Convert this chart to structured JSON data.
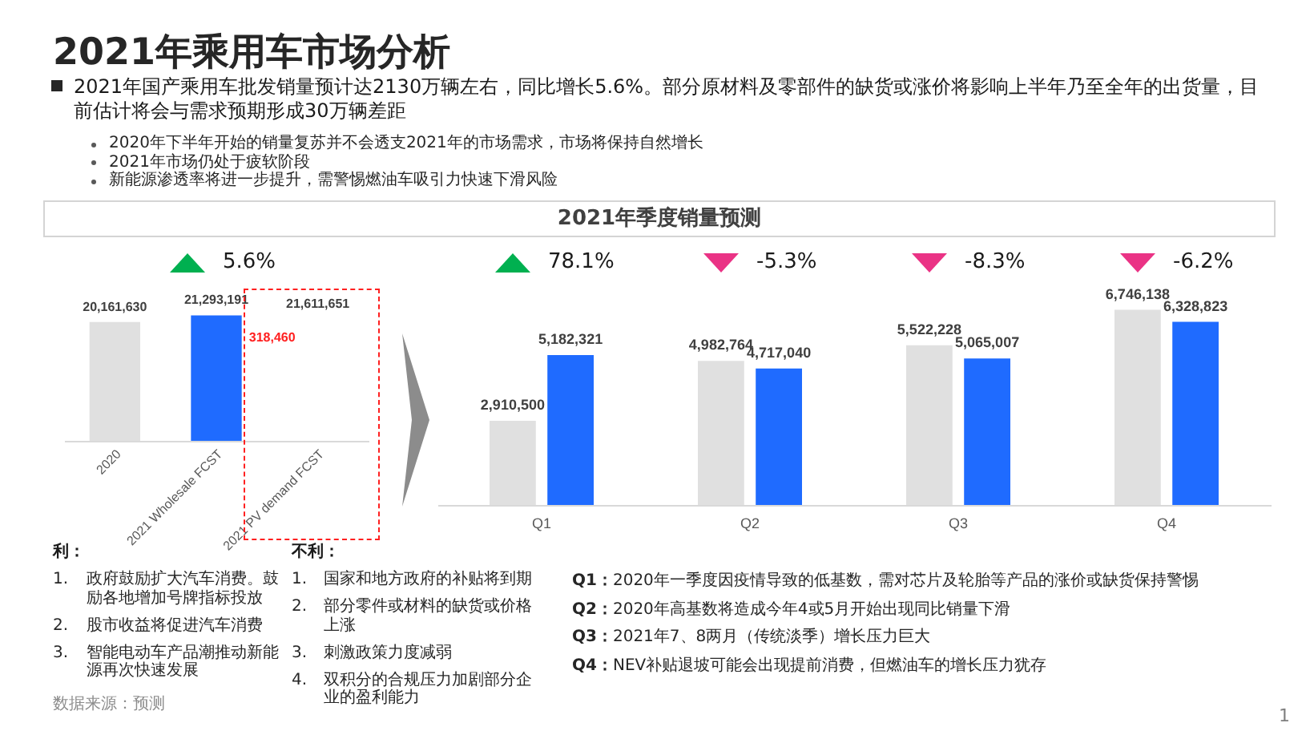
{
  "chart_data": [
    {
      "type": "other",
      "title": "2021年乘用车市场分析",
      "annotations": [
        "2021年国产乘用车批发销量预计达2130万辆左右，同比增长5.6%。部分原材料及零部件的缺货或涨价将影响上半年乃至全年的出货量，目前估计将会与需求预期形成30万辆差距",
        "2020年下半年开始的销量复苏并不会透支2021年的市场需求，市场将保持自然增长",
        "2021年市场仍处于疲软阶段",
        "新能源渗透率将进一步提升，需警惕燃油车吸引力快速下滑风险"
      ]
    },
    {
      "type": "bar",
      "categories": [
        "2020",
        "2021 Wholesale FCST",
        "2021 PV demand FCST"
      ],
      "values": [
        20161630,
        21293191,
        null
      ],
      "colors": [
        "#e0e0e0",
        "#1f6bff",
        null
      ],
      "value_labels": [
        "20,161,630",
        "21,293,191",
        null
      ],
      "annotations": [
        "5.6%",
        "21,611,651",
        "318,460",
        "利：",
        "1. 政府鼓励扩大汽车消费。鼓励各地增加号牌指标投放",
        "2. 股市收益将促进汽车消费",
        "3. 智能电动车产品潮推动新能源再次快速发展",
        "不利：",
        "1. 国家和地方政府的补贴将到期",
        "2. 部分零件或材料的缺货或价格上涨",
        "3. 刺激政策力度减弱",
        "4. 双积分的合规压力加剧部分企业的盈利能力",
        "数据来源：预测"
      ]
    },
    {
      "type": "bar",
      "title": "2021年季度销量预测",
      "categories": [
        "Q1",
        "Q2",
        "Q3",
        "Q4"
      ],
      "series": [
        {
          "color": "#e0e0e0",
          "values": [
            2910500,
            4982764,
            5522228,
            6746138
          ],
          "value_labels": [
            "2,910,500",
            "4,982,764",
            "5,522,228",
            "6,746,138"
          ]
        },
        {
          "color": "#1f6bff",
          "values": [
            5182321,
            4717040,
            5065007,
            6328823
          ],
          "value_labels": [
            "5,182,321",
            "4,717,040",
            "5,065,007",
            "6,328,823"
          ]
        }
      ],
      "annotations": [
        "78.1%",
        "-5.3%",
        "-8.3%",
        "-6.2%",
        "Q1：2020年一季度因疫情导致的低基数，需对芯片及轮胎等产品的涨价或缺货保持警惕",
        "Q2：2020年高基数将造成今年4或5月开始出现同比销量下滑",
        "Q3：2021年7、8两月（传统淡季）增长压力巨大",
        "Q4：NEV补贴退坡可能会出现提前消费，但燃油车的增长压力犹存",
        "1"
      ]
    }
  ]
}
